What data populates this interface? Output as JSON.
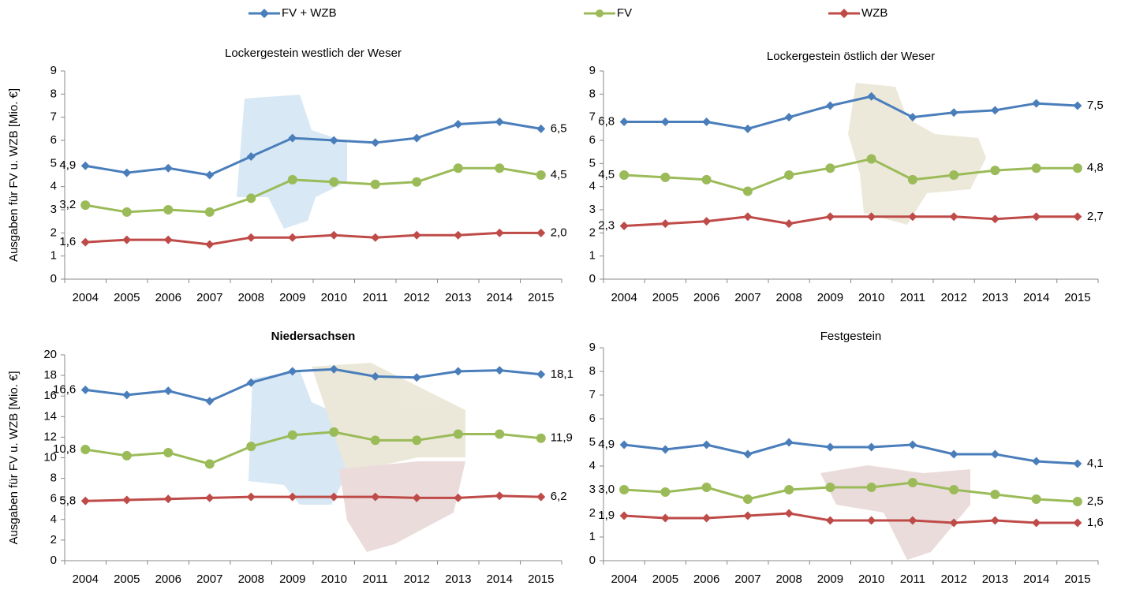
{
  "chart_data": [
    {
      "type": "line",
      "title": "Lockergestein westlich der Weser",
      "ylabel": "Ausgaben für FV u. WZB [Mio. €]",
      "categories": [
        "2004",
        "2005",
        "2006",
        "2007",
        "2008",
        "2009",
        "2010",
        "2011",
        "2012",
        "2013",
        "2014",
        "2015"
      ],
      "ylim": [
        0,
        9
      ],
      "yticks": [
        0,
        1,
        2,
        3,
        4,
        5,
        6,
        7,
        8,
        9
      ],
      "series": [
        {
          "name": "FV + WZB",
          "color": "#4a7ebb",
          "marker": "diamond",
          "values": [
            4.9,
            4.6,
            4.8,
            4.5,
            5.3,
            6.1,
            6.0,
            5.9,
            6.1,
            6.7,
            6.8,
            6.5
          ],
          "value_labels": [
            "4,9",
            null,
            null,
            null,
            null,
            null,
            null,
            null,
            null,
            null,
            null,
            "6,5"
          ]
        },
        {
          "name": "FV",
          "color": "#9bbb59",
          "marker": "circle",
          "values": [
            3.2,
            2.9,
            3.0,
            2.9,
            3.5,
            4.3,
            4.2,
            4.1,
            4.2,
            4.8,
            4.8,
            4.5
          ],
          "value_labels": [
            "3,2",
            null,
            null,
            null,
            null,
            null,
            null,
            null,
            null,
            null,
            null,
            "4,5"
          ]
        },
        {
          "name": "WZB",
          "color": "#be4b48",
          "marker": "diamond",
          "values": [
            1.6,
            1.7,
            1.7,
            1.5,
            1.8,
            1.8,
            1.9,
            1.8,
            1.9,
            1.9,
            2.0,
            2.0
          ],
          "value_labels": [
            "1,6",
            null,
            null,
            null,
            null,
            null,
            null,
            null,
            null,
            null,
            null,
            "2,0"
          ]
        }
      ]
    },
    {
      "type": "line",
      "title": "Lockergestein östlich der Weser",
      "categories": [
        "2004",
        "2005",
        "2006",
        "2007",
        "2008",
        "2009",
        "2010",
        "2011",
        "2012",
        "2013",
        "2014",
        "2015"
      ],
      "ylim": [
        0,
        9
      ],
      "yticks": [
        0,
        1,
        2,
        3,
        4,
        5,
        6,
        7,
        8,
        9
      ],
      "series": [
        {
          "name": "FV + WZB",
          "color": "#4a7ebb",
          "marker": "diamond",
          "values": [
            6.8,
            6.8,
            6.8,
            6.5,
            7.0,
            7.5,
            7.9,
            7.0,
            7.2,
            7.3,
            7.6,
            7.5
          ],
          "value_labels": [
            "6,8",
            null,
            null,
            null,
            null,
            null,
            null,
            null,
            null,
            null,
            null,
            "7,5"
          ]
        },
        {
          "name": "FV",
          "color": "#9bbb59",
          "marker": "circle",
          "values": [
            4.5,
            4.4,
            4.3,
            3.8,
            4.5,
            4.8,
            5.2,
            4.3,
            4.5,
            4.7,
            4.8,
            4.8
          ],
          "value_labels": [
            "4,5",
            null,
            null,
            null,
            null,
            null,
            null,
            null,
            null,
            null,
            null,
            "4,8"
          ]
        },
        {
          "name": "WZB",
          "color": "#be4b48",
          "marker": "diamond",
          "values": [
            2.3,
            2.4,
            2.5,
            2.7,
            2.4,
            2.7,
            2.7,
            2.7,
            2.7,
            2.6,
            2.7,
            2.7
          ],
          "value_labels": [
            "2,3",
            null,
            null,
            null,
            null,
            null,
            null,
            null,
            null,
            null,
            null,
            "2,7"
          ]
        }
      ]
    },
    {
      "type": "line",
      "title": "Niedersachsen",
      "title_bold": true,
      "ylabel": "Ausgaben für FV u. WZB [Mio. €]",
      "categories": [
        "2004",
        "2005",
        "2006",
        "2007",
        "2008",
        "2009",
        "2010",
        "2011",
        "2012",
        "2013",
        "2014",
        "2015"
      ],
      "ylim": [
        0,
        20
      ],
      "yticks": [
        0,
        2,
        4,
        6,
        8,
        10,
        12,
        14,
        16,
        18,
        20
      ],
      "series": [
        {
          "name": "FV + WZB",
          "color": "#4a7ebb",
          "marker": "diamond",
          "values": [
            16.6,
            16.1,
            16.5,
            15.5,
            17.3,
            18.4,
            18.6,
            17.9,
            17.8,
            18.4,
            18.5,
            18.1
          ],
          "value_labels": [
            "16,6",
            null,
            null,
            null,
            null,
            null,
            null,
            null,
            null,
            null,
            null,
            "18,1"
          ]
        },
        {
          "name": "FV",
          "color": "#9bbb59",
          "marker": "circle",
          "values": [
            10.8,
            10.2,
            10.5,
            9.4,
            11.1,
            12.2,
            12.5,
            11.7,
            11.7,
            12.3,
            12.3,
            11.9
          ],
          "value_labels": [
            "10,8",
            null,
            null,
            null,
            null,
            null,
            null,
            null,
            null,
            null,
            null,
            "11,9"
          ]
        },
        {
          "name": "WZB",
          "color": "#be4b48",
          "marker": "diamond",
          "values": [
            5.8,
            5.9,
            6.0,
            6.1,
            6.2,
            6.2,
            6.2,
            6.2,
            6.1,
            6.1,
            6.3,
            6.2
          ],
          "value_labels": [
            "5,8",
            null,
            null,
            null,
            null,
            null,
            null,
            null,
            null,
            null,
            null,
            "6,2"
          ]
        }
      ]
    },
    {
      "type": "line",
      "title": "Festgestein",
      "categories": [
        "2004",
        "2005",
        "2006",
        "2007",
        "2008",
        "2009",
        "2010",
        "2011",
        "2012",
        "2013",
        "2014",
        "2015"
      ],
      "ylim": [
        0,
        9
      ],
      "yticks": [
        0,
        1,
        2,
        3,
        4,
        5,
        6,
        7,
        8,
        9
      ],
      "series": [
        {
          "name": "FV + WZB",
          "color": "#4a7ebb",
          "marker": "diamond",
          "values": [
            4.9,
            4.7,
            4.9,
            4.5,
            5.0,
            4.8,
            4.8,
            4.9,
            4.5,
            4.5,
            4.2,
            4.1
          ],
          "value_labels": [
            "4,9",
            null,
            null,
            null,
            null,
            null,
            null,
            null,
            null,
            null,
            null,
            "4,1"
          ]
        },
        {
          "name": "FV",
          "color": "#9bbb59",
          "marker": "circle",
          "values": [
            3.0,
            2.9,
            3.1,
            2.6,
            3.0,
            3.1,
            3.1,
            3.3,
            3.0,
            2.8,
            2.6,
            2.5
          ],
          "value_labels": [
            "3,0",
            null,
            null,
            null,
            null,
            null,
            null,
            null,
            null,
            null,
            null,
            "2,5"
          ]
        },
        {
          "name": "WZB",
          "color": "#be4b48",
          "marker": "diamond",
          "values": [
            1.9,
            1.8,
            1.8,
            1.9,
            2.0,
            1.7,
            1.7,
            1.7,
            1.6,
            1.7,
            1.6,
            1.6
          ],
          "value_labels": [
            "1,9",
            null,
            null,
            null,
            null,
            null,
            null,
            null,
            null,
            null,
            null,
            "1,6"
          ]
        }
      ]
    }
  ]
}
